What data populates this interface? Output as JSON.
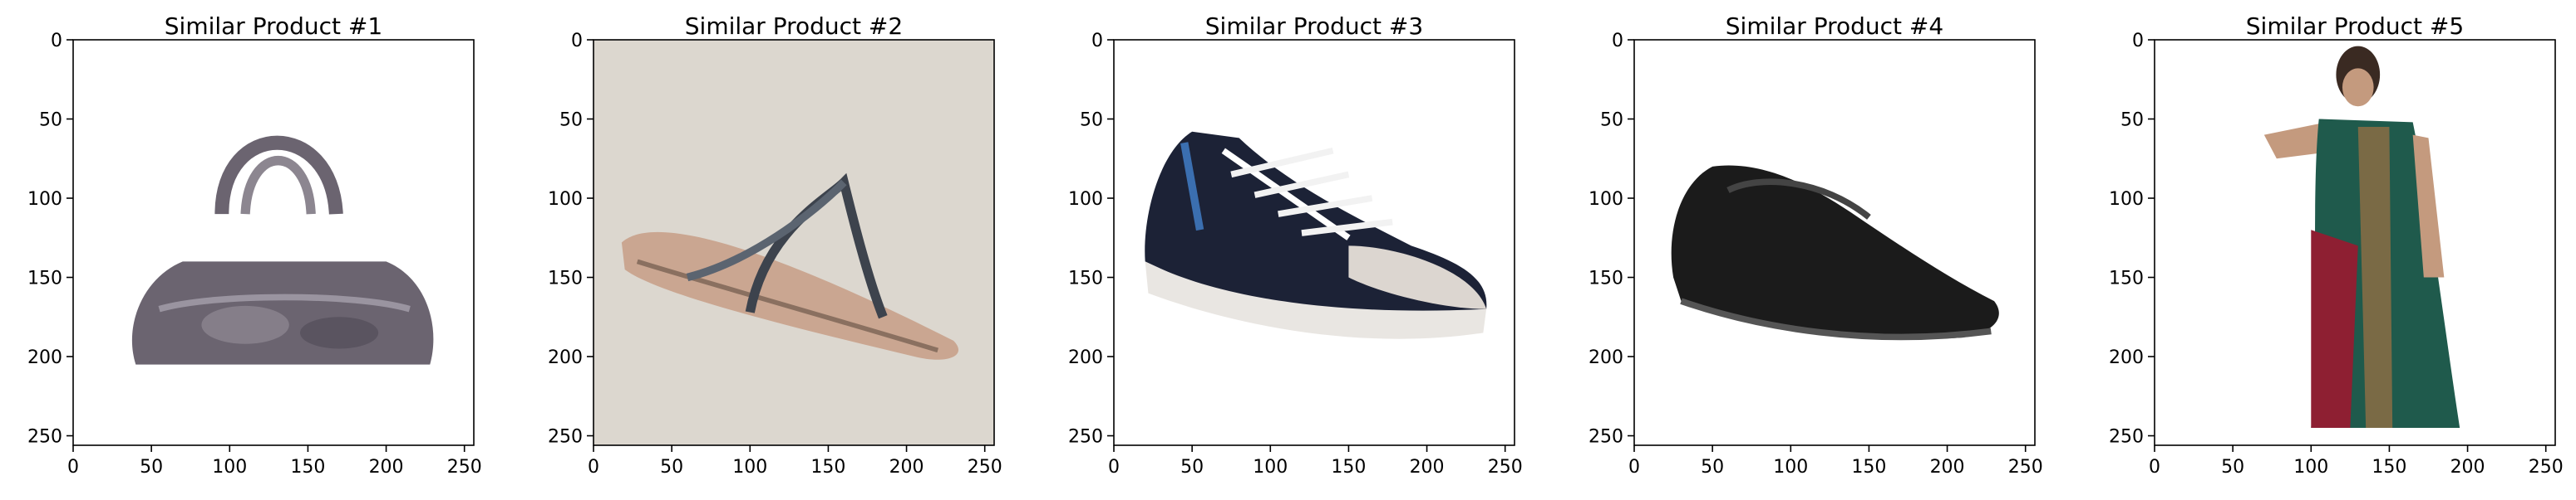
{
  "panels": [
    {
      "title": "Similar Product #1",
      "image_label": "gray handbag",
      "image_background": "#ffffff",
      "x_ticks": [
        0,
        50,
        100,
        150,
        200,
        250
      ],
      "y_ticks": [
        0,
        50,
        100,
        150,
        200,
        250
      ],
      "xlim": [
        0,
        256
      ],
      "ylim": [
        256,
        0
      ]
    },
    {
      "title": "Similar Product #2",
      "image_label": "flip-flop sandal",
      "image_background": "#dcd7cf",
      "x_ticks": [
        0,
        50,
        100,
        150,
        200,
        250
      ],
      "y_ticks": [
        0,
        50,
        100,
        150,
        200,
        250
      ],
      "xlim": [
        0,
        256
      ],
      "ylim": [
        256,
        0
      ]
    },
    {
      "title": "Similar Product #3",
      "image_label": "navy sneaker",
      "image_background": "#ffffff",
      "x_ticks": [
        0,
        50,
        100,
        150,
        200,
        250
      ],
      "y_ticks": [
        0,
        50,
        100,
        150,
        200,
        250
      ],
      "xlim": [
        0,
        256
      ],
      "ylim": [
        256,
        0
      ]
    },
    {
      "title": "Similar Product #4",
      "image_label": "black leather shoe",
      "image_background": "#ffffff",
      "x_ticks": [
        0,
        50,
        100,
        150,
        200,
        250
      ],
      "y_ticks": [
        0,
        50,
        100,
        150,
        200,
        250
      ],
      "xlim": [
        0,
        256
      ],
      "ylim": [
        256,
        0
      ]
    },
    {
      "title": "Similar Product #5",
      "image_label": "woman in saree",
      "image_background": "#ffffff",
      "x_ticks": [
        0,
        50,
        100,
        150,
        200,
        250
      ],
      "y_ticks": [
        0,
        50,
        100,
        150,
        200,
        250
      ],
      "xlim": [
        0,
        256
      ],
      "ylim": [
        256,
        0
      ]
    }
  ],
  "colors": {
    "axes": "#000000",
    "text": "#000000",
    "handbag": "#6b6470",
    "sandal_sole": "#caa691",
    "sneaker_upper": "#1c2236",
    "shoe": "#1b1b1b",
    "saree_green": "#1f5a4c",
    "saree_red": "#8e1f32"
  }
}
